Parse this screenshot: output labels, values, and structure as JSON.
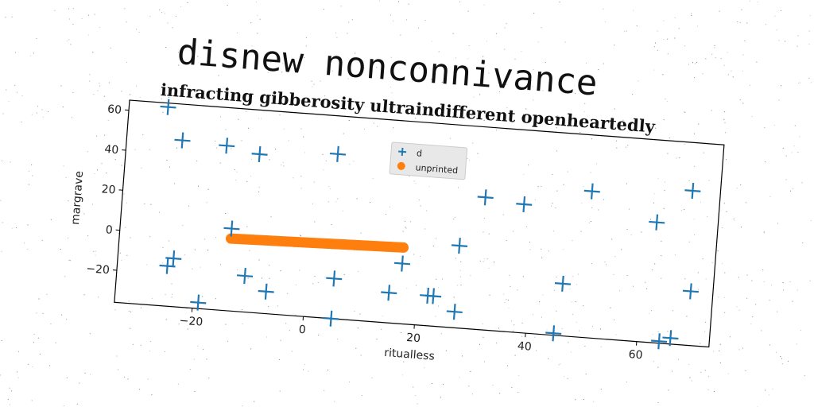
{
  "chart_data": {
    "type": "scatter",
    "title": "disnew nonconnivance",
    "subtitle": "infracting gibberosity ultraindifferent openheartedly",
    "xlabel": "ritualless",
    "ylabel": "margrave",
    "xlim": [
      -34,
      73
    ],
    "ylim": [
      -36,
      65
    ],
    "xticks": [
      -20,
      0,
      20,
      40,
      60
    ],
    "yticks": [
      -20,
      0,
      20,
      40,
      60
    ],
    "grid": false,
    "legend": "top-center",
    "series": [
      {
        "name": "d",
        "marker": "plus",
        "color": "#1f77b4",
        "points": [
          [
            -27,
            63
          ],
          [
            -24,
            47
          ],
          [
            -16,
            46
          ],
          [
            -10,
            43
          ],
          [
            4,
            46
          ],
          [
            15,
            46
          ],
          [
            31,
            30
          ],
          [
            38,
            28
          ],
          [
            50,
            37
          ],
          [
            62,
            24
          ],
          [
            68,
            41
          ],
          [
            -14,
            5
          ],
          [
            27,
            5
          ],
          [
            17,
            -6
          ],
          [
            -24,
            -12
          ],
          [
            -25,
            -16
          ],
          [
            -11,
            -18
          ],
          [
            -7,
            -25
          ],
          [
            5,
            -16
          ],
          [
            15,
            -21
          ],
          [
            22,
            -21
          ],
          [
            23,
            -21
          ],
          [
            27,
            -28
          ],
          [
            46,
            -10
          ],
          [
            69,
            -9
          ],
          [
            -19,
            -33
          ],
          [
            5,
            -36
          ],
          [
            45,
            -35
          ],
          [
            64,
            -35
          ],
          [
            66,
            -33
          ]
        ]
      },
      {
        "name": "unprinted",
        "marker": "circle",
        "color": "#ff7f0e",
        "line": {
          "x": [
            -14,
            17
          ],
          "y": [
            0,
            2
          ],
          "count": 90
        }
      }
    ]
  }
}
